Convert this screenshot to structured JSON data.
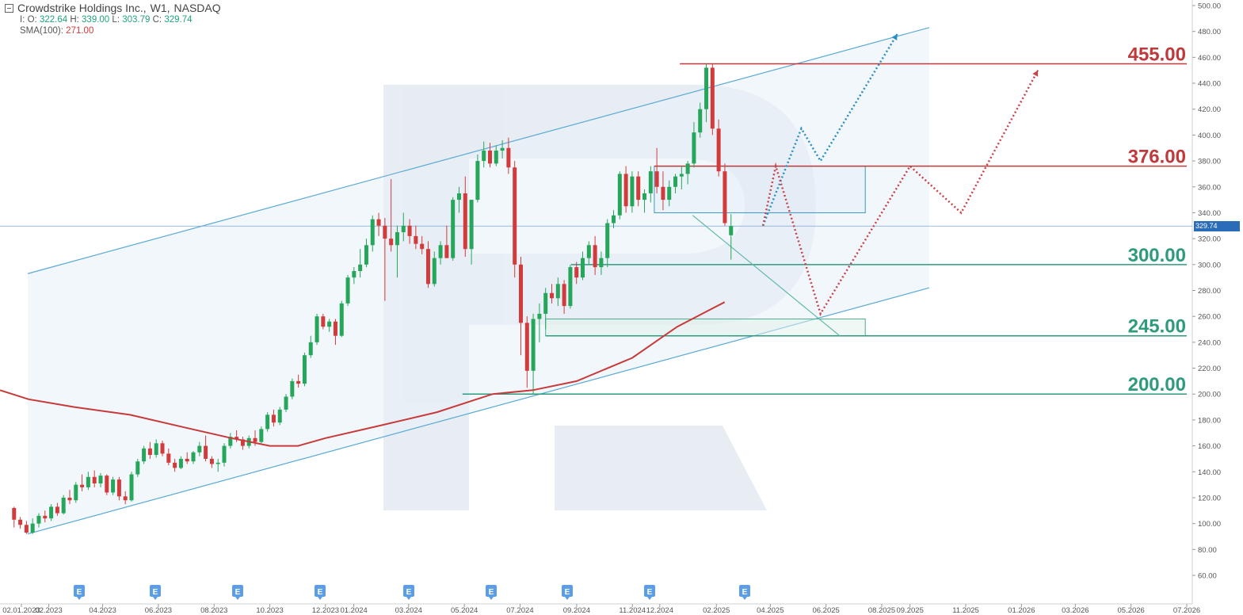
{
  "header": {
    "symbol": "Crowdstrike Holdings Inc.,",
    "interval": "W1,",
    "exchange": "NASDAQ",
    "ohlc": [
      {
        "label": "I: O:",
        "value": "322.64",
        "color": "green"
      },
      {
        "label": "H:",
        "value": "339.00",
        "color": "green"
      },
      {
        "label": "L:",
        "value": "303.79",
        "color": "green"
      },
      {
        "label": "C:",
        "value": "329.74",
        "color": "green"
      }
    ],
    "sma_label": "SMA(100):",
    "sma_value": "271.00"
  },
  "current_price_tag": "329.74",
  "colors": {
    "up": "#26a65b",
    "down": "#d23b3b",
    "sma": "#c83a3a",
    "channel": "#5aa9d6",
    "support": "#2e9a7e",
    "resistance": "#c0393b",
    "forecast_blue": "#2a8ec4",
    "forecast_red": "#c8434a",
    "earnings_badge": "#5b9ee6"
  },
  "chart_data": {
    "type": "candlestick",
    "y_axis_ticks": [
      "60.00",
      "80.00",
      "100.00",
      "120.00",
      "140.00",
      "160.00",
      "180.00",
      "200.00",
      "220.00",
      "240.00",
      "260.00",
      "280.00",
      "300.00",
      "320.00",
      "340.00",
      "360.00",
      "380.00",
      "400.00",
      "420.00",
      "440.00",
      "460.00",
      "480.00",
      "500.00"
    ],
    "ylim": [
      45,
      502
    ],
    "x_axis_ticks": [
      "02.01.2023",
      "02.2023",
      "04.2023",
      "06.2023",
      "08.2023",
      "10.2023",
      "12.2023",
      "01.2024",
      "03.2024",
      "05.2024",
      "07.2024",
      "09.2024",
      "11.2024",
      "12.2024",
      "02.2025",
      "04.2025",
      "06.2025",
      "08.2025",
      "09.2025",
      "11.2025",
      "01.2026",
      "03.2026",
      "05.2026",
      "07.2026"
    ],
    "earnings_marker": "E",
    "earnings_dates": [
      "2023-03-01",
      "2023-05-31",
      "2023-08-30",
      "2023-11-28",
      "2024-03-05",
      "2024-06-04",
      "2024-08-28",
      "2024-11-26",
      "2025-03-04"
    ],
    "levels": [
      {
        "label": "455.00",
        "value": 455,
        "kind": "resistance"
      },
      {
        "label": "376.00",
        "value": 376,
        "kind": "resistance"
      },
      {
        "label": "300.00",
        "value": 300,
        "kind": "support"
      },
      {
        "label": "245.00",
        "value": 245,
        "kind": "support"
      },
      {
        "label": "200.00",
        "value": 200,
        "kind": "support"
      }
    ],
    "last_close": 329.74,
    "sma_name": "SMA(100)"
  }
}
